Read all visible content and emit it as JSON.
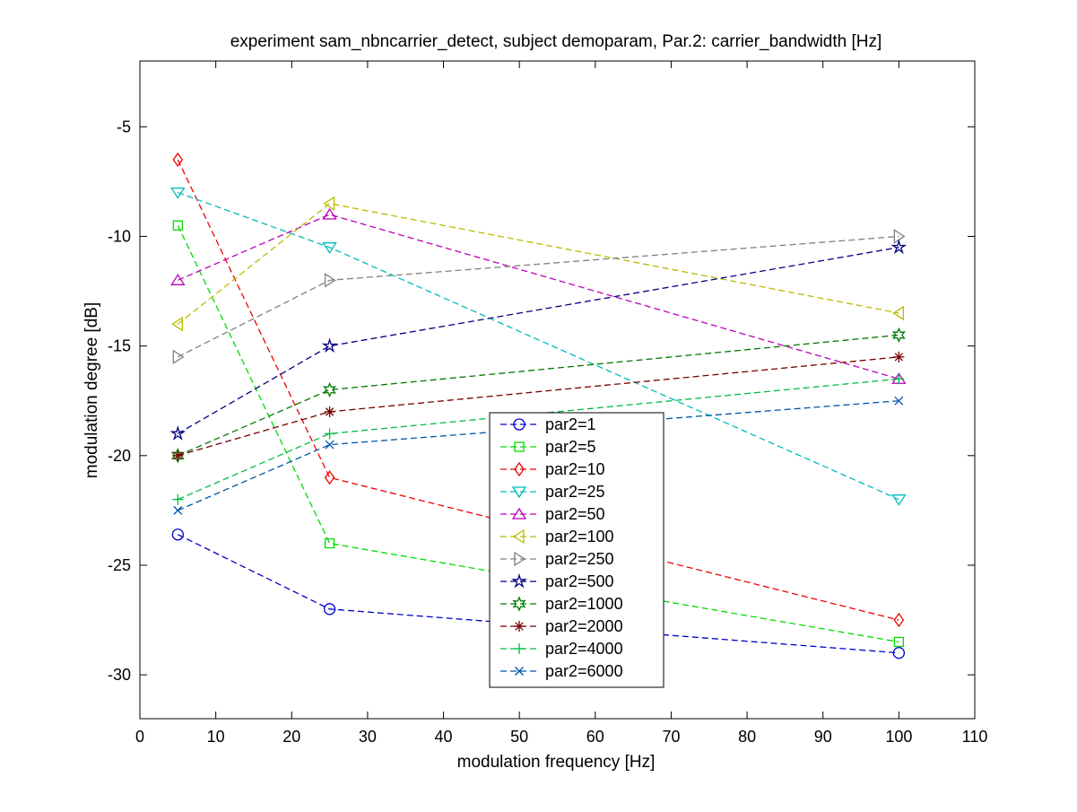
{
  "chart_data": {
    "type": "line",
    "title": "experiment sam_nbncarrier_detect, subject demoparam,  Par.2: carrier_bandwidth [Hz]",
    "xlabel": "modulation frequency [Hz]",
    "ylabel": "modulation degree [dB]",
    "xlim": [
      0,
      110
    ],
    "ylim": [
      -32,
      -2
    ],
    "xticks": [
      0,
      10,
      20,
      30,
      40,
      50,
      60,
      70,
      80,
      90,
      100,
      110
    ],
    "yticks": [
      -5,
      -10,
      -15,
      -20,
      -25,
      -30
    ],
    "grid": false,
    "legend_position": "lower-center",
    "x": [
      5,
      25,
      100
    ],
    "series": [
      {
        "name": "par2=1",
        "color": "#0000cc",
        "marker": "circle",
        "values": [
          -23.6,
          -27.0,
          -29.0
        ]
      },
      {
        "name": "par2=5",
        "color": "#00dd00",
        "marker": "square",
        "values": [
          -9.5,
          -24.0,
          -28.5
        ]
      },
      {
        "name": "par2=10",
        "color": "#ee0000",
        "marker": "diamond",
        "values": [
          -6.5,
          -21.0,
          -27.5
        ]
      },
      {
        "name": "par2=25",
        "color": "#00bbbb",
        "marker": "triangle-down",
        "values": [
          -8.0,
          -10.5,
          -22.0
        ]
      },
      {
        "name": "par2=50",
        "color": "#bb00bb",
        "marker": "triangle-up",
        "values": [
          -12.0,
          -9.0,
          -16.5
        ]
      },
      {
        "name": "par2=100",
        "color": "#bbbb00",
        "marker": "triangle-left",
        "values": [
          -14.0,
          -8.5,
          -13.5
        ]
      },
      {
        "name": "par2=250",
        "color": "#808080",
        "marker": "triangle-right",
        "values": [
          -15.5,
          -12.0,
          -10.0
        ]
      },
      {
        "name": "par2=500",
        "color": "#000080",
        "marker": "star",
        "values": [
          -19.0,
          -15.0,
          -10.5
        ]
      },
      {
        "name": "par2=1000",
        "color": "#007700",
        "marker": "hexagram",
        "values": [
          -20.0,
          -17.0,
          -14.5
        ]
      },
      {
        "name": "par2=2000",
        "color": "#770000",
        "marker": "asterisk",
        "values": [
          -20.0,
          -18.0,
          -15.5
        ]
      },
      {
        "name": "par2=4000",
        "color": "#00bb44",
        "marker": "plus",
        "values": [
          -22.0,
          -19.0,
          -16.5
        ]
      },
      {
        "name": "par2=6000",
        "color": "#0055aa",
        "marker": "x",
        "values": [
          -22.5,
          -19.5,
          -17.5
        ]
      }
    ]
  }
}
